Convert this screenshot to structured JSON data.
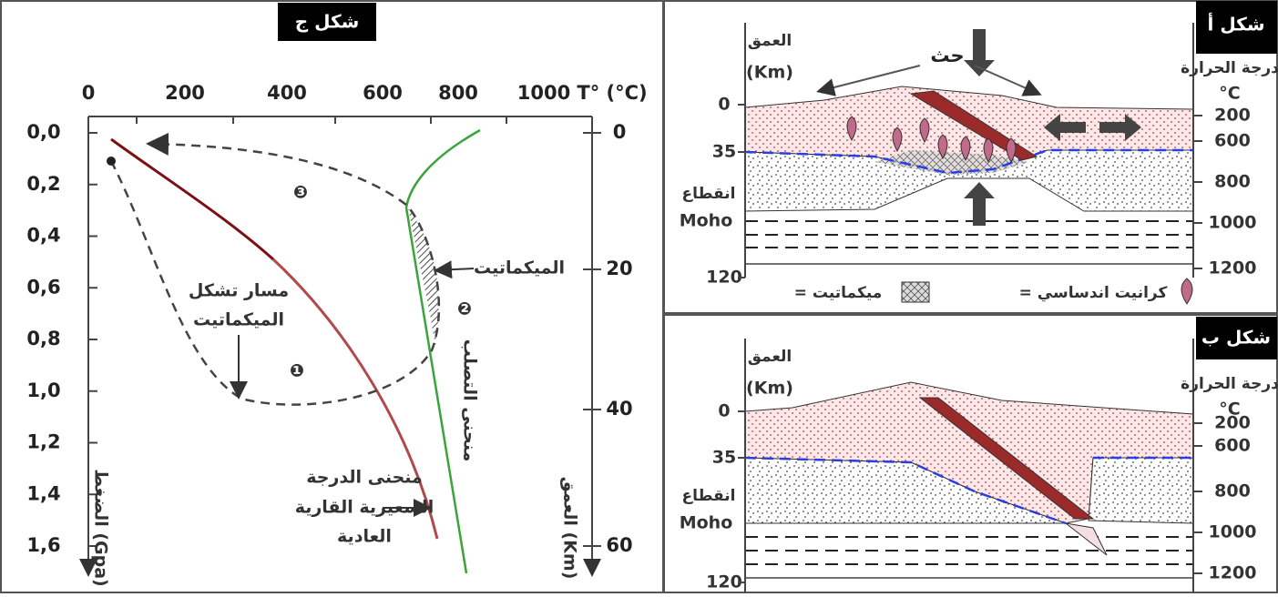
{
  "figure_c": {
    "title": "شكل ج",
    "temperature_axis": {
      "label": "T° (°C)",
      "ticks": [
        "0",
        "200",
        "400",
        "600",
        "800",
        "1000"
      ]
    },
    "pressure_axis": {
      "label": "الضغط (Gpa)",
      "ticks": [
        "0,0",
        "0,2",
        "0,4",
        "0,6",
        "0,8",
        "1,0",
        "1,2",
        "1,4",
        "1,6"
      ]
    },
    "depth_axis": {
      "label": "العمق (Km)",
      "ticks": [
        "0",
        "20",
        "40",
        "60"
      ]
    },
    "migmatite_label": "الميكماتيت",
    "path_label": [
      "مسار تشكل",
      "الميكماتيت"
    ],
    "solidus_label": "منحنى التصلب",
    "geotherm_label": [
      "منحنى الدرجة",
      "السعيرية القارية",
      "العادية"
    ],
    "steps": [
      "❶",
      "❷",
      "❸"
    ]
  },
  "figure_a": {
    "title": "شكل أ",
    "depth_label": [
      "العمق",
      "(Km)"
    ],
    "depth_ticks": [
      "0",
      "35",
      "120"
    ],
    "moho_label": [
      "انقطاع",
      "Moho"
    ],
    "temperature_label": [
      "درجة الحرارة",
      "°C"
    ],
    "temperature_ticks": [
      "200",
      "600",
      "800",
      "1000",
      "1200"
    ],
    "compression_label": "حث",
    "legend": {
      "granite": "= كرانيت اندساسي",
      "migmatite": "= ميكماتيت"
    }
  },
  "figure_b": {
    "title": "شكل ب",
    "depth_label": [
      "العمق",
      "(Km)"
    ],
    "depth_ticks": [
      "0",
      "35",
      "120"
    ],
    "moho_label": [
      "انقطاع",
      "Moho"
    ],
    "temperature_label": [
      "درجة الحرارة",
      "°C"
    ],
    "temperature_ticks": [
      "200",
      "600",
      "800",
      "1000",
      "1200"
    ]
  }
}
